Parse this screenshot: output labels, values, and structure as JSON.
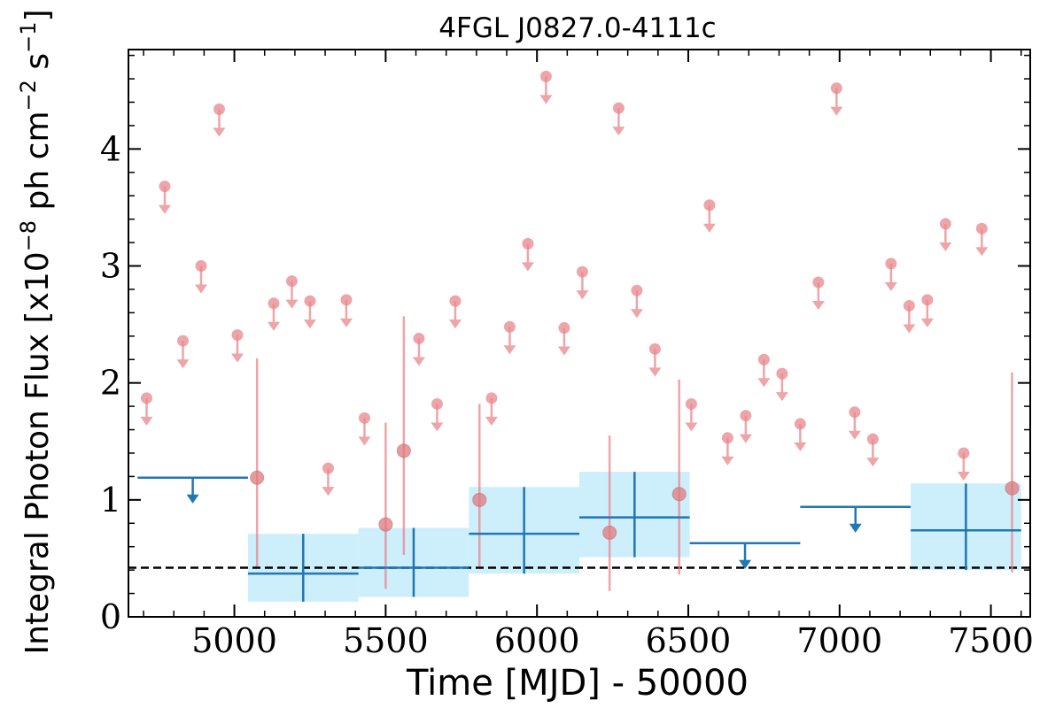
{
  "chart_data": {
    "type": "scatter",
    "title": "4FGL J0827.0-4111c",
    "xlabel": "Time [MJD] - 50000",
    "ylabel": "Integral Photon Flux [x10$^{-8}$ ph cm$^{-2}$ s$^{-1}$]",
    "xlim": [
      4650,
      7630
    ],
    "ylim": [
      0,
      4.85
    ],
    "x_ticks": [
      5000,
      5500,
      6000,
      6500,
      7000,
      7500
    ],
    "y_ticks": [
      0,
      1,
      2,
      3,
      4
    ],
    "x_tick_labels": [
      "5000",
      "5500",
      "6000",
      "6500",
      "7000",
      "7500"
    ],
    "y_tick_labels": [
      "0",
      "1",
      "2",
      "3",
      "4"
    ],
    "grid": false,
    "legend": "none",
    "reference_line": {
      "y": 0.42,
      "style": "dashed",
      "color": "#000000"
    },
    "colors": {
      "upper_limit_points": "#e8878c",
      "binned_series": "#1f77b4",
      "binned_band": "#cdeefb"
    },
    "fine_upper_limits": [
      {
        "x": 4710,
        "y": 1.87
      },
      {
        "x": 4770,
        "y": 3.68
      },
      {
        "x": 4830,
        "y": 2.36
      },
      {
        "x": 4890,
        "y": 3.0
      },
      {
        "x": 4950,
        "y": 4.34
      },
      {
        "x": 5010,
        "y": 2.41
      },
      {
        "x": 5130,
        "y": 2.68
      },
      {
        "x": 5190,
        "y": 2.87
      },
      {
        "x": 5250,
        "y": 2.7
      },
      {
        "x": 5310,
        "y": 1.27
      },
      {
        "x": 5370,
        "y": 2.71
      },
      {
        "x": 5430,
        "y": 1.7
      },
      {
        "x": 5610,
        "y": 2.38
      },
      {
        "x": 5670,
        "y": 1.82
      },
      {
        "x": 5730,
        "y": 2.7
      },
      {
        "x": 5850,
        "y": 1.87
      },
      {
        "x": 5910,
        "y": 2.48
      },
      {
        "x": 5970,
        "y": 3.19
      },
      {
        "x": 6030,
        "y": 4.62
      },
      {
        "x": 6090,
        "y": 2.47
      },
      {
        "x": 6150,
        "y": 2.95
      },
      {
        "x": 6270,
        "y": 4.35
      },
      {
        "x": 6330,
        "y": 2.79
      },
      {
        "x": 6390,
        "y": 2.29
      },
      {
        "x": 6510,
        "y": 1.82
      },
      {
        "x": 6570,
        "y": 3.52
      },
      {
        "x": 6630,
        "y": 1.53
      },
      {
        "x": 6690,
        "y": 1.72
      },
      {
        "x": 6750,
        "y": 2.2
      },
      {
        "x": 6810,
        "y": 2.08
      },
      {
        "x": 6870,
        "y": 1.65
      },
      {
        "x": 6930,
        "y": 2.86
      },
      {
        "x": 6990,
        "y": 4.52
      },
      {
        "x": 7050,
        "y": 1.75
      },
      {
        "x": 7110,
        "y": 1.52
      },
      {
        "x": 7170,
        "y": 3.02
      },
      {
        "x": 7230,
        "y": 2.66
      },
      {
        "x": 7290,
        "y": 2.71
      },
      {
        "x": 7350,
        "y": 3.36
      },
      {
        "x": 7410,
        "y": 1.4
      },
      {
        "x": 7470,
        "y": 3.32
      }
    ],
    "fine_detections": [
      {
        "x": 5075,
        "y": 1.19,
        "ylow": 0.43,
        "yhigh": 2.21
      },
      {
        "x": 5500,
        "y": 0.79,
        "ylow": 0.24,
        "yhigh": 1.66
      },
      {
        "x": 5560,
        "y": 1.42,
        "ylow": 0.53,
        "yhigh": 2.57
      },
      {
        "x": 5810,
        "y": 1.0,
        "ylow": 0.43,
        "yhigh": 1.82
      },
      {
        "x": 6240,
        "y": 0.72,
        "ylow": 0.22,
        "yhigh": 1.55
      },
      {
        "x": 6470,
        "y": 1.05,
        "ylow": 0.36,
        "yhigh": 2.03
      },
      {
        "x": 7570,
        "y": 1.1,
        "ylow": 0.38,
        "yhigh": 2.09
      }
    ],
    "binned_detections": [
      {
        "x0": 5045,
        "x1": 5410,
        "y": 0.37,
        "ylow": 0.13,
        "yhigh": 0.71,
        "band_low": 0.13,
        "band_high": 0.71
      },
      {
        "x0": 5410,
        "x1": 5775,
        "y": 0.42,
        "ylow": 0.17,
        "yhigh": 0.76,
        "band_low": 0.17,
        "band_high": 0.76
      },
      {
        "x0": 5775,
        "x1": 6140,
        "y": 0.71,
        "ylow": 0.37,
        "yhigh": 1.11,
        "band_low": 0.37,
        "band_high": 1.11
      },
      {
        "x0": 6140,
        "x1": 6505,
        "y": 0.85,
        "ylow": 0.51,
        "yhigh": 1.24,
        "band_low": 0.51,
        "band_high": 1.24
      },
      {
        "x0": 7235,
        "x1": 7600,
        "y": 0.74,
        "ylow": 0.4,
        "yhigh": 1.14,
        "band_low": 0.4,
        "band_high": 1.14
      }
    ],
    "binned_upper_limits": [
      {
        "x0": 4680,
        "x1": 5045,
        "y": 1.19
      },
      {
        "x0": 6505,
        "x1": 6870,
        "y": 0.63
      },
      {
        "x0": 6870,
        "x1": 7235,
        "y": 0.94
      }
    ]
  }
}
